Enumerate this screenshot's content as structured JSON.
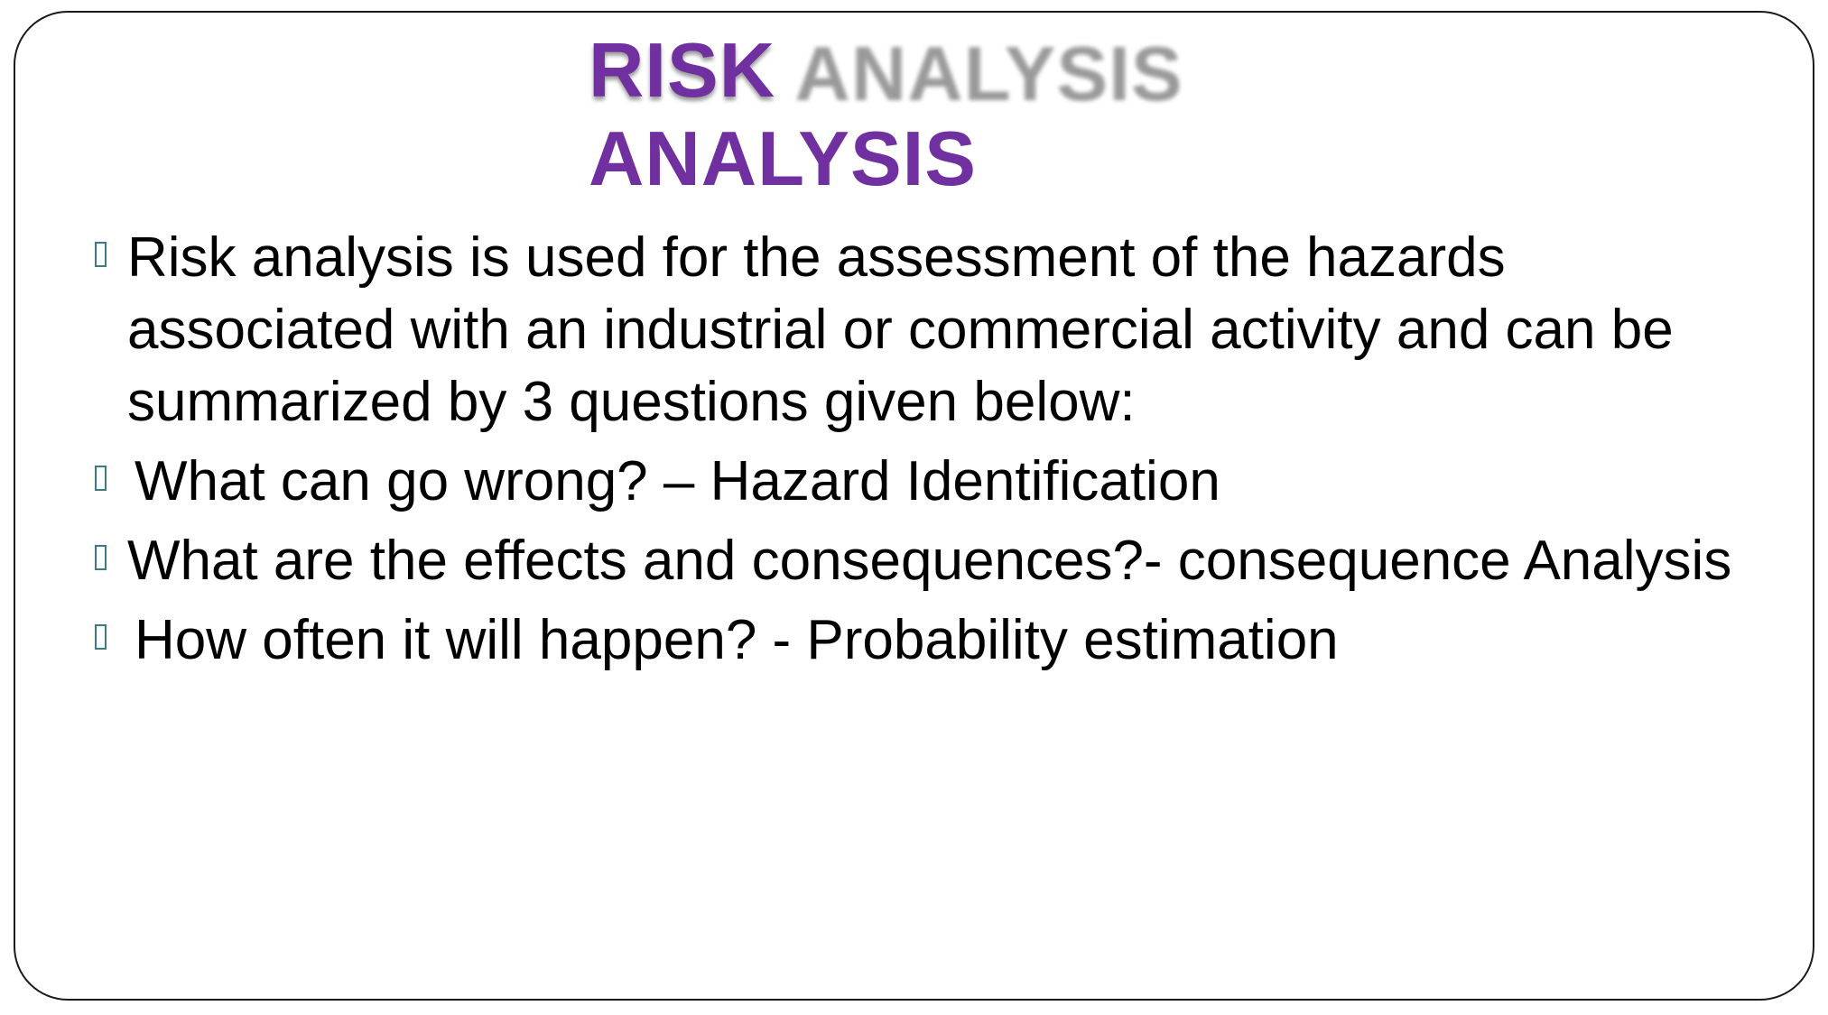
{
  "slide": {
    "title_line1": "RISK",
    "title_shadow": "RISK ANALYSIS",
    "title_line2": "ANALYSIS",
    "colors": {
      "title": "#7030a0",
      "title_shadow": "#9a9a9a",
      "bullet": "#3c7a84",
      "text": "#000000",
      "border": "#1a1a1a"
    },
    "bullets": [
      {
        "icon": "square-bullet-icon",
        "text": "Risk analysis is used for the assessment of the hazards associated with an industrial or commercial activity and can be  summarized by 3 questions given below:"
      },
      {
        "icon": "square-bullet-icon",
        "text": "What can go wrong? – Hazard Identification"
      },
      {
        "icon": "square-bullet-icon",
        "text": "What are the effects and consequences?- consequence Analysis"
      },
      {
        "icon": "square-bullet-icon",
        "text": "How often it will happen? - Probability estimation"
      }
    ]
  }
}
